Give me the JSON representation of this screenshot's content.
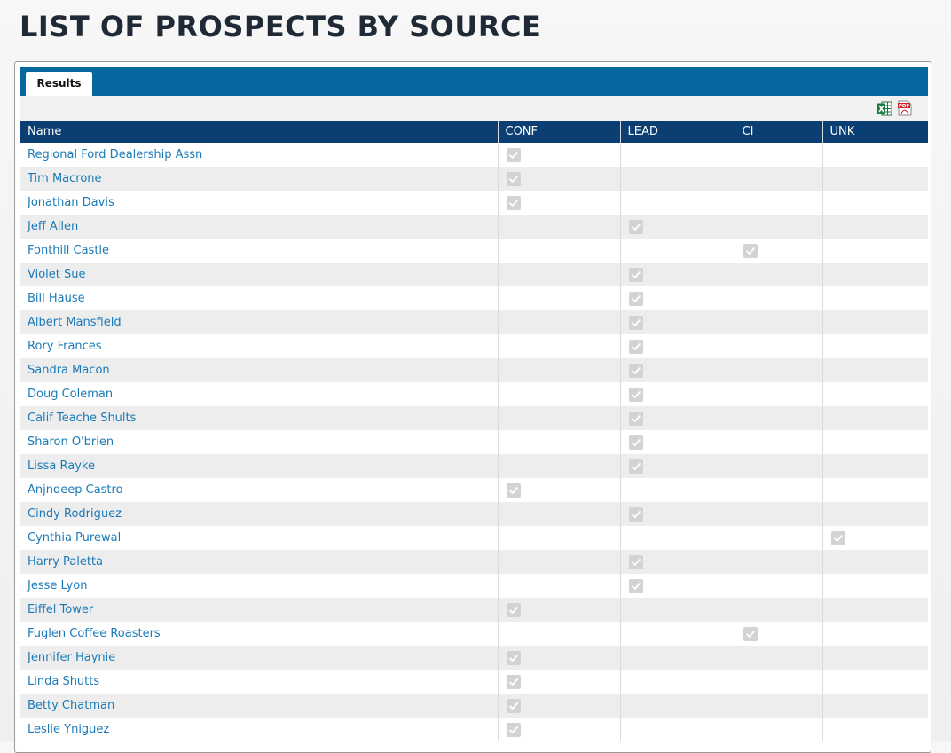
{
  "page": {
    "title": "LIST OF PROSPECTS BY SOURCE"
  },
  "tabs": [
    {
      "label": "Results",
      "active": true
    }
  ],
  "toolbar": {
    "excel_icon": "excel-export-icon",
    "pdf_icon": "pdf-export-icon"
  },
  "colors": {
    "tab_bar": "#05679e",
    "header_bg": "#0b3e73",
    "link": "#1a7ab8",
    "row_alt": "#ededed"
  },
  "table": {
    "columns": [
      "Name",
      "CONF",
      "LEAD",
      "CI",
      "UNK"
    ],
    "rows": [
      {
        "name": "Regional Ford Dealership Assn",
        "source": "CONF"
      },
      {
        "name": "Tim Macrone",
        "source": "CONF"
      },
      {
        "name": "Jonathan Davis",
        "source": "CONF"
      },
      {
        "name": "Jeff Allen",
        "source": "LEAD"
      },
      {
        "name": "Fonthill Castle",
        "source": "CI"
      },
      {
        "name": "Violet Sue",
        "source": "LEAD"
      },
      {
        "name": "Bill Hause",
        "source": "LEAD"
      },
      {
        "name": "Albert Mansfield",
        "source": "LEAD"
      },
      {
        "name": "Rory Frances",
        "source": "LEAD"
      },
      {
        "name": "Sandra Macon",
        "source": "LEAD"
      },
      {
        "name": "Doug Coleman",
        "source": "LEAD"
      },
      {
        "name": "Calif Teache Shults",
        "source": "LEAD"
      },
      {
        "name": "Sharon O'brien",
        "source": "LEAD"
      },
      {
        "name": "Lissa Rayke",
        "source": "LEAD"
      },
      {
        "name": "Anjndeep Castro",
        "source": "CONF"
      },
      {
        "name": "Cindy Rodriguez",
        "source": "LEAD"
      },
      {
        "name": "Cynthia Purewal",
        "source": "UNK"
      },
      {
        "name": "Harry Paletta",
        "source": "LEAD"
      },
      {
        "name": "Jesse Lyon",
        "source": "LEAD"
      },
      {
        "name": "Eiffel Tower",
        "source": "CONF"
      },
      {
        "name": "Fuglen Coffee Roasters",
        "source": "CI"
      },
      {
        "name": "Jennifer Haynie",
        "source": "CONF"
      },
      {
        "name": "Linda Shutts",
        "source": "CONF"
      },
      {
        "name": "Betty Chatman",
        "source": "CONF"
      },
      {
        "name": "Leslie Yniguez",
        "source": "CONF"
      }
    ]
  }
}
